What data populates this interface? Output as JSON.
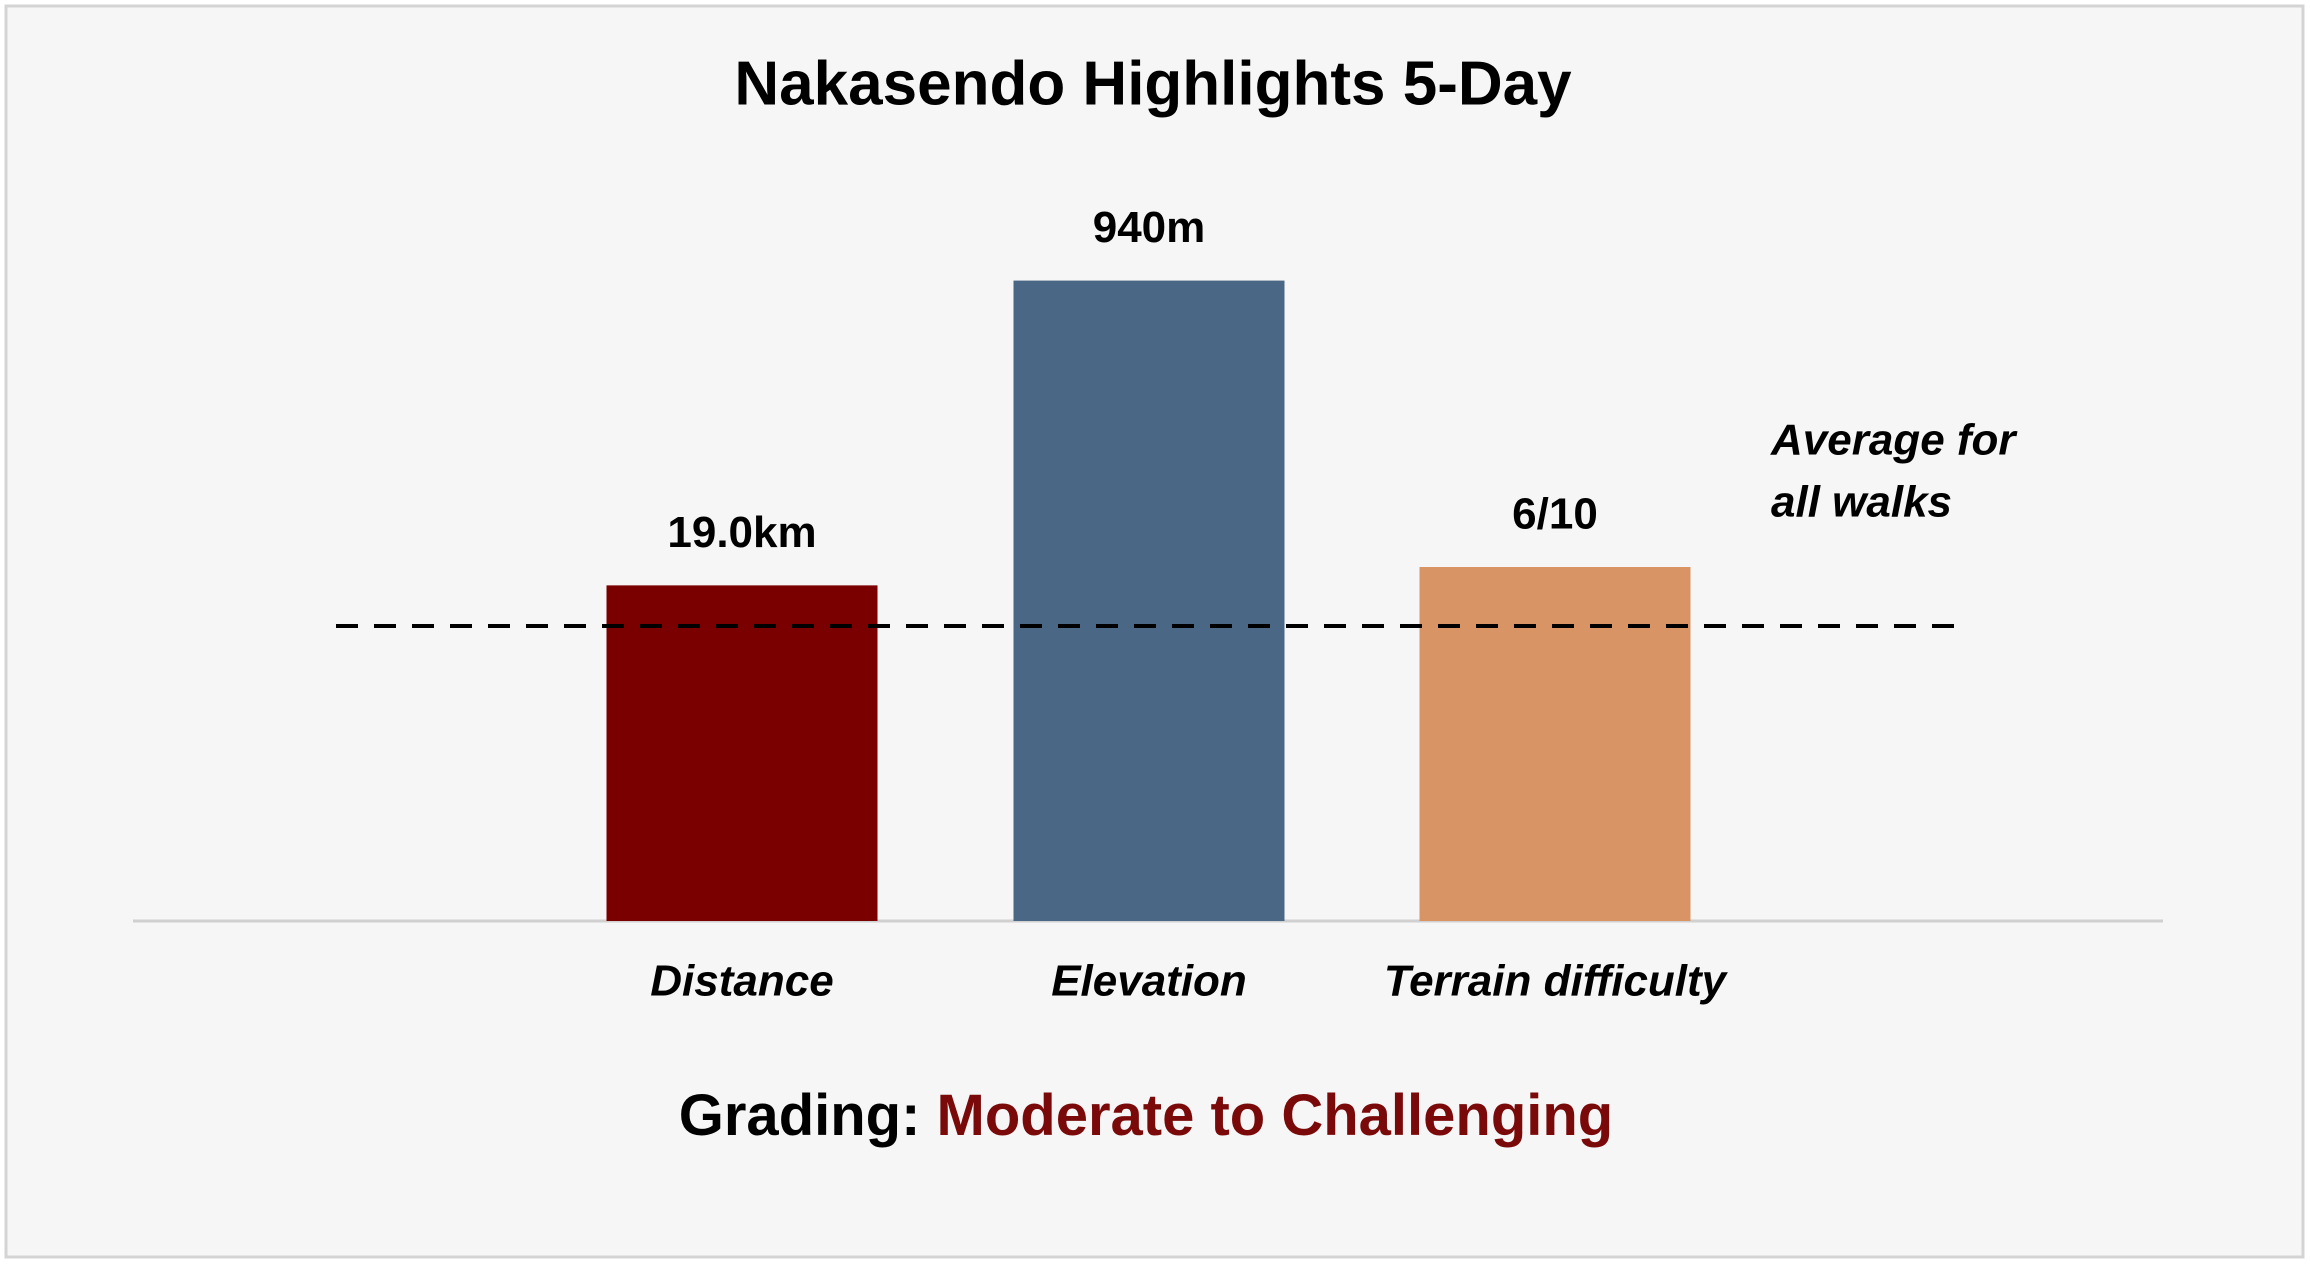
{
  "chart_data": {
    "type": "bar",
    "title": "Nakasendo Highlights 5-Day",
    "categories": [
      "Distance",
      "Elevation",
      "Terrain difficulty"
    ],
    "values": [
      19.0,
      940,
      6
    ],
    "value_labels": [
      "19.0km",
      "940m",
      "6/10"
    ],
    "colors": [
      "#7a0000",
      "#4a6785",
      "#d89465"
    ],
    "average": {
      "label": [
        "Average for",
        "all walks"
      ],
      "values": [
        16.7,
        433,
        5
      ]
    },
    "grading_label": "Grading:",
    "grading": "Moderate to Challenging",
    "grading_color": "#7a0a0a"
  }
}
